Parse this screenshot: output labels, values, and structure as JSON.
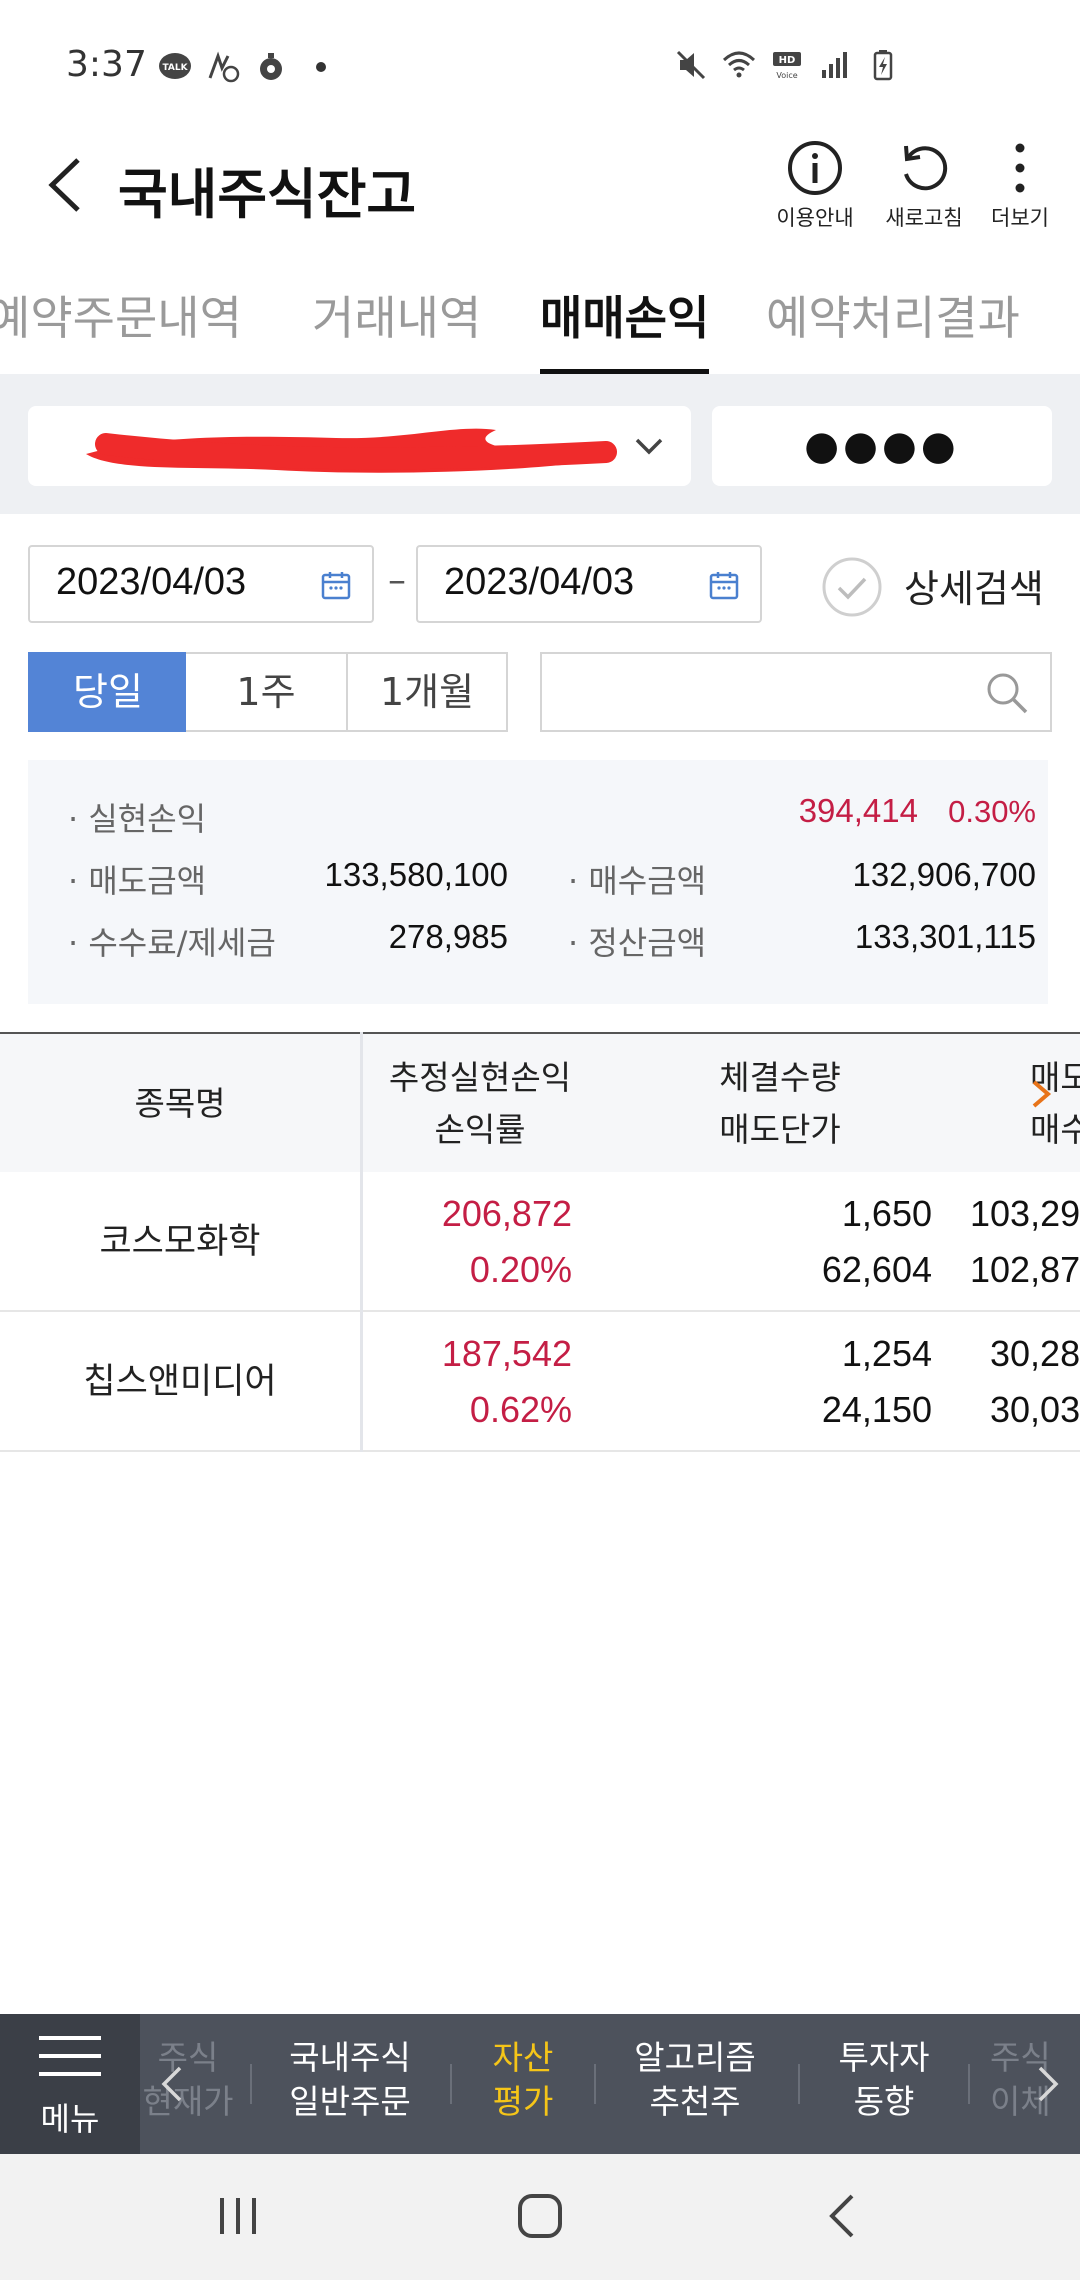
{
  "status_bar": {
    "time": "3:37",
    "left_icons": [
      "talk-icon",
      "sync-icon",
      "timer-icon"
    ],
    "right_icons": [
      "mute-icon",
      "wifi-icon",
      "hd-voice-icon",
      "signal-icon",
      "battery-icon"
    ]
  },
  "header": {
    "title": "국내주식잔고",
    "actions": [
      {
        "label": "이용안내",
        "icon": "info-icon"
      },
      {
        "label": "새로고침",
        "icon": "refresh-icon"
      },
      {
        "label": "더보기",
        "icon": "more-vertical-icon"
      }
    ]
  },
  "tabs": [
    {
      "label": "예약주문내역",
      "active": false
    },
    {
      "label": "거래내역",
      "active": false
    },
    {
      "label": "매매손익",
      "active": true
    },
    {
      "label": "예약처리결과",
      "active": false
    }
  ],
  "account": {
    "password_mask": "●●●●"
  },
  "date_range": {
    "start": "2023/04/03",
    "separator": "–",
    "end": "2023/04/03",
    "detail_search_label": "상세검색"
  },
  "period_buttons": [
    {
      "label": "당일",
      "active": true
    },
    {
      "label": "1주",
      "active": false
    },
    {
      "label": "1개월",
      "active": false
    }
  ],
  "search": {
    "placeholder": ""
  },
  "summary": {
    "realized_label": "실현손익",
    "realized_value": "394,414",
    "realized_rate": "0.30%",
    "sell_label": "매도금액",
    "sell_value": "133,580,100",
    "buy_label": "매수금액",
    "buy_value": "132,906,700",
    "fee_label": "수수료/제세금",
    "fee_value": "278,985",
    "settle_label": "정산금액",
    "settle_value": "133,301,115"
  },
  "table": {
    "headers": {
      "name": "종목명",
      "pnl_top": "추정실현손익",
      "pnl_bottom": "손익률",
      "qty_top": "체결수량",
      "qty_bottom": "매도단가",
      "amt_top": "매도",
      "amt_bottom": "매수"
    },
    "rows": [
      {
        "name": "코스모화학",
        "pnl": "206,872",
        "rate": "0.20%",
        "qty": "1,650",
        "price": "62,604",
        "sell_amt": "103,29",
        "buy_amt": "102,87"
      },
      {
        "name": "칩스앤미디어",
        "pnl": "187,542",
        "rate": "0.62%",
        "qty": "1,254",
        "price": "24,150",
        "sell_amt": "30,28",
        "buy_amt": "30,03"
      }
    ]
  },
  "bottom_menu": {
    "menu_label": "메뉴",
    "faded_left_top": "주식",
    "faded_left_bottom": "현재가",
    "items": [
      {
        "top": "국내주식",
        "bottom": "일반주문",
        "active": false
      },
      {
        "top": "자산",
        "bottom": "평가",
        "active": true
      },
      {
        "top": "알고리즘",
        "bottom": "추천주",
        "active": false
      },
      {
        "top": "투자자",
        "bottom": "동향",
        "active": false
      }
    ],
    "faded_right_top": "주식",
    "faded_right_bottom": "이체"
  },
  "colors": {
    "accent_blue": "#5384d6",
    "profit_red": "#c41e45",
    "menu_bg": "#4d525c",
    "menu_active": "#f5c518"
  }
}
